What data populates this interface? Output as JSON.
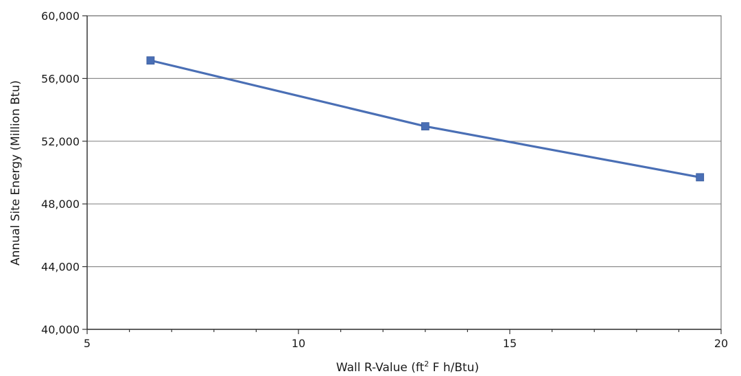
{
  "chart_data": {
    "type": "line",
    "title": "",
    "xlabel_parts": {
      "before": "Wall R-Value (ft",
      "sup": "2",
      "after": " F h/Btu)"
    },
    "ylabel": "Annual Site Energy (Million Btu)",
    "xlim": [
      5,
      20
    ],
    "ylim": [
      40000,
      60000
    ],
    "x_ticks": [
      5,
      10,
      15,
      20
    ],
    "x_tick_labels": [
      "5",
      "10",
      "15",
      "20"
    ],
    "x_minor_step": 1,
    "y_ticks": [
      40000,
      44000,
      48000,
      52000,
      56000,
      60000
    ],
    "y_tick_labels": [
      "40,000",
      "44,000",
      "48,000",
      "52,000",
      "56,000",
      "60,000"
    ],
    "grid": "horizontal-major",
    "legend": "none",
    "series": [
      {
        "color": "#4a6fb5",
        "marker": "square",
        "x": [
          6.5,
          13,
          19.5
        ],
        "y": [
          57150,
          52950,
          49700
        ]
      }
    ]
  }
}
